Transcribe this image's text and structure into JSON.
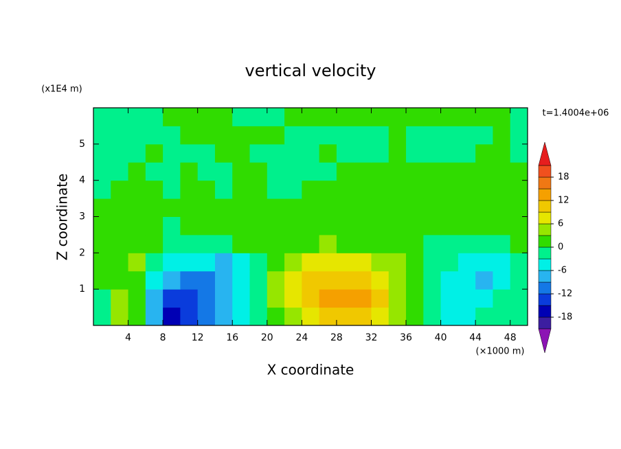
{
  "chart_data": {
    "type": "contour",
    "title": "vertical velocity",
    "x_label": "X coordinate",
    "y_label": "Z coordinate",
    "x_unit_label": "(×1000 m)",
    "y_unit_label": "(x1E4 m)",
    "time_label": "t=1.4004e+06",
    "xlim": [
      0,
      50
    ],
    "ylim": [
      0,
      6
    ],
    "xticks": [
      4,
      8,
      12,
      16,
      20,
      24,
      28,
      32,
      36,
      40,
      44,
      48
    ],
    "yticks": [
      1,
      2,
      3,
      4,
      5
    ],
    "x": [
      1,
      3,
      5,
      7,
      9,
      11,
      13,
      15,
      17,
      19,
      21,
      23,
      25,
      27,
      29,
      31,
      33,
      35,
      37,
      39,
      41,
      43,
      45,
      47,
      49
    ],
    "y": [
      0.25,
      0.75,
      1.25,
      1.75,
      2.25,
      2.75,
      3.25,
      3.75,
      4.25,
      4.75,
      5.25,
      5.75
    ],
    "z": [
      [
        -2,
        4,
        2,
        -8,
        -16,
        -13,
        -10,
        -7,
        -4,
        -1,
        2,
        4,
        7,
        10,
        11,
        9,
        7,
        4,
        1,
        -2,
        -4,
        -4,
        -3,
        -1,
        -2
      ],
      [
        -1,
        4,
        1,
        -7,
        -14,
        -13,
        -11,
        -8,
        -5,
        -2,
        3,
        6,
        9,
        12,
        13,
        12,
        9,
        5,
        1,
        -3,
        -4,
        -4,
        -4,
        -3,
        -2
      ],
      [
        1,
        1,
        0,
        -5,
        -8,
        -10,
        -10,
        -9,
        -6,
        -2,
        3,
        6,
        9,
        10,
        10,
        10,
        8,
        5,
        1,
        -3,
        -4,
        -5,
        -8,
        -5,
        -2
      ],
      [
        2,
        1,
        3,
        -2,
        -4,
        -5,
        -6,
        -7,
        -4,
        -1,
        2,
        4,
        6,
        7,
        7,
        6,
        5,
        3,
        0,
        -2,
        -3,
        -4,
        -5,
        -4,
        -1
      ],
      [
        1,
        0,
        1,
        0,
        -1,
        -2,
        -2,
        -1,
        0,
        1,
        1,
        2,
        2,
        3,
        2,
        2,
        1,
        1,
        0,
        -1,
        -1,
        -1,
        -2,
        -1,
        0
      ],
      [
        0,
        1,
        0,
        1,
        -1,
        0,
        1,
        1,
        0,
        1,
        0,
        1,
        1,
        2,
        1,
        1,
        1,
        0,
        1,
        0,
        1,
        0,
        0,
        1,
        0
      ],
      [
        1,
        1,
        0,
        1,
        0,
        1,
        1,
        0,
        1,
        0,
        1,
        1,
        0,
        1,
        1,
        0,
        1,
        1,
        0,
        1,
        1,
        1,
        0,
        1,
        1
      ],
      [
        -1,
        0,
        1,
        0,
        -1,
        1,
        0,
        -1,
        1,
        0,
        -1,
        -1,
        0,
        1,
        1,
        0,
        1,
        1,
        1,
        1,
        0,
        1,
        1,
        1,
        0
      ],
      [
        -1,
        -1,
        0,
        -1,
        -1,
        0,
        -1,
        -1,
        1,
        0,
        -1,
        -1,
        -1,
        -1,
        0,
        0,
        0,
        1,
        1,
        1,
        1,
        1,
        0,
        1,
        1
      ],
      [
        -1,
        -1,
        -1,
        0,
        -1,
        -1,
        -1,
        0,
        0,
        -1,
        -1,
        -1,
        -1,
        0,
        -1,
        -1,
        -1,
        0,
        -1,
        -1,
        -1,
        -1,
        0,
        0,
        -1
      ],
      [
        -1,
        -1,
        -1,
        -1,
        -1,
        0,
        0,
        0,
        0,
        0,
        0,
        -1,
        -1,
        -1,
        -1,
        -1,
        -1,
        0,
        -1,
        -1,
        -1,
        -1,
        -1,
        0,
        -1
      ],
      [
        -1,
        -1,
        -1,
        -1,
        0,
        0,
        0,
        0,
        -1,
        -1,
        -1,
        0,
        1,
        1,
        1,
        1,
        1,
        1,
        1,
        1,
        1,
        1,
        1,
        1,
        -1
      ]
    ],
    "levels": [
      -21,
      -18,
      -15,
      -12,
      -9,
      -6,
      -3,
      0,
      3,
      6,
      9,
      12,
      15,
      18,
      21
    ],
    "colors": [
      "#8c14b4",
      "#3c1ea0",
      "#0000b4",
      "#0a3cdc",
      "#1478e6",
      "#28b4f0",
      "#00f0e6",
      "#00f08c",
      "#30dc00",
      "#96e600",
      "#e6e600",
      "#f0c800",
      "#f5a000",
      "#f07814",
      "#f0501e",
      "#e61e1e",
      "#f0a0a0"
    ],
    "colorbar_ticks": [
      -18,
      -12,
      -6,
      0,
      6,
      12,
      18
    ]
  }
}
